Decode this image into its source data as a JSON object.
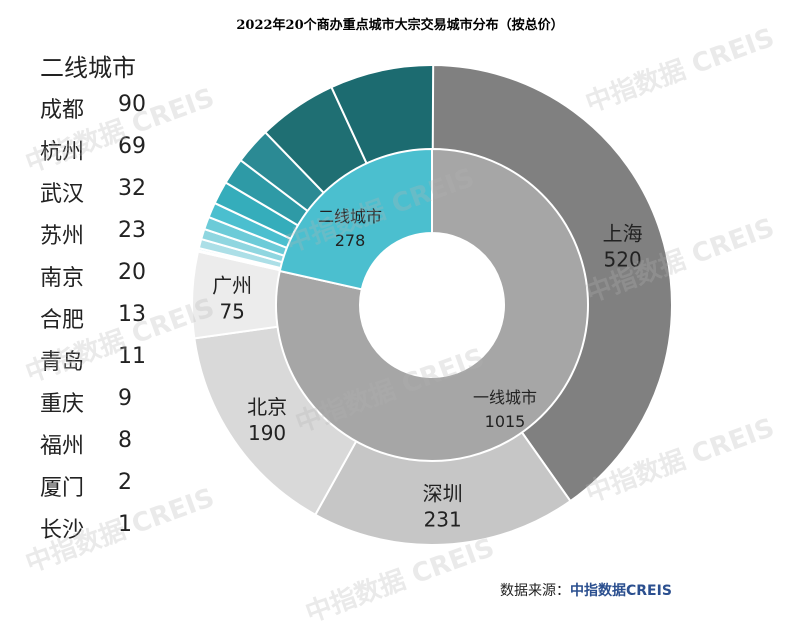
{
  "chart_data": {
    "type": "pie",
    "title": "2022年20个商办重点城市大宗交易城市分布（按总价）",
    "inner_ring": [
      {
        "name": "一线城市",
        "value": 1015,
        "color": "#a6a6a6"
      },
      {
        "name": "二线城市",
        "value": 278,
        "color": "#4bbfcf"
      }
    ],
    "outer_ring": [
      {
        "name": "上海",
        "value": 520,
        "color": "#808080",
        "group": "一线城市"
      },
      {
        "name": "深圳",
        "value": 231,
        "color": "#c6c6c6",
        "group": "一线城市"
      },
      {
        "name": "北京",
        "value": 190,
        "color": "#d9d9d9",
        "group": "一线城市"
      },
      {
        "name": "广州",
        "value": 75,
        "color": "#ececec",
        "group": "一线城市"
      },
      {
        "name": "成都",
        "value": 90,
        "color": "#1c6b70",
        "group": "二线城市"
      },
      {
        "name": "杭州",
        "value": 69,
        "color": "#1f6f73",
        "group": "二线城市"
      },
      {
        "name": "武汉",
        "value": 32,
        "color": "#2b8a94",
        "group": "二线城市"
      },
      {
        "name": "苏州",
        "value": 23,
        "color": "#2e9aa6",
        "group": "二线城市"
      },
      {
        "name": "南京",
        "value": 20,
        "color": "#35adbb",
        "group": "二线城市"
      },
      {
        "name": "合肥",
        "value": 13,
        "color": "#4bbfcf",
        "group": "二线城市"
      },
      {
        "name": "青岛",
        "value": 11,
        "color": "#6ccbd8",
        "group": "二线城市"
      },
      {
        "name": "重庆",
        "value": 9,
        "color": "#8fd6e0",
        "group": "二线城市"
      },
      {
        "name": "福州",
        "value": 8,
        "color": "#acdfe7",
        "group": "二线城市"
      },
      {
        "name": "厦门",
        "value": 2,
        "color": "#c6e9ee",
        "group": "二线城市"
      },
      {
        "name": "长沙",
        "value": 1,
        "color": "#dff2f5",
        "group": "二线城市"
      }
    ],
    "outer_labels_shown": [
      "上海",
      "深圳",
      "北京",
      "广州"
    ],
    "legend_title": "二线城市"
  },
  "source_label": "数据来源：",
  "source_brand": "中指数据CREIS",
  "watermark": "中指数据 CREIS"
}
